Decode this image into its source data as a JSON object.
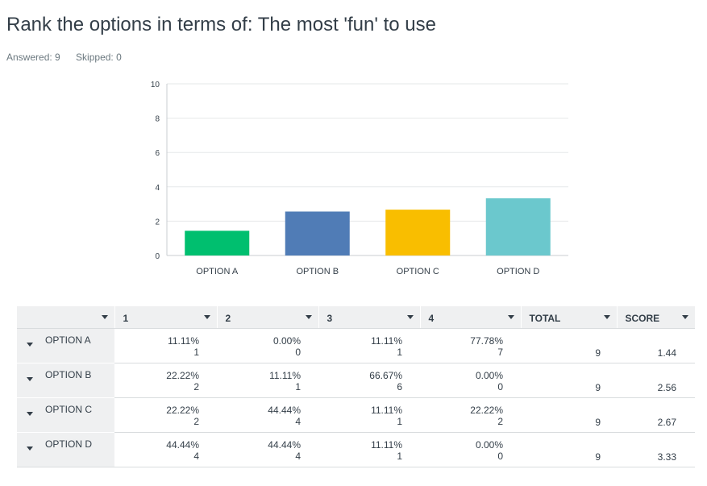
{
  "question": {
    "title": "Rank the options in terms of: The most 'fun' to use",
    "answered": "Answered: 9",
    "skipped": "Skipped: 0"
  },
  "chart_data": {
    "type": "bar",
    "categories": [
      "OPTION A",
      "OPTION B",
      "OPTION C",
      "OPTION D"
    ],
    "values": [
      1.44,
      2.56,
      2.67,
      3.33
    ],
    "colors": [
      "#00bf6f",
      "#507cb6",
      "#f9be00",
      "#6bc8cd"
    ],
    "ylim": [
      0,
      10
    ],
    "yticks": [
      "0",
      "2",
      "4",
      "6",
      "8",
      "10"
    ],
    "grid": true
  },
  "table": {
    "headers": [
      "",
      "1",
      "2",
      "3",
      "4",
      "TOTAL",
      "SCORE"
    ],
    "rows": [
      {
        "label": "OPTION A",
        "cells": [
          [
            "11.11%",
            "1"
          ],
          [
            "0.00%",
            "0"
          ],
          [
            "11.11%",
            "1"
          ],
          [
            "77.78%",
            "7"
          ]
        ],
        "total": "9",
        "score": "1.44"
      },
      {
        "label": "OPTION B",
        "cells": [
          [
            "22.22%",
            "2"
          ],
          [
            "11.11%",
            "1"
          ],
          [
            "66.67%",
            "6"
          ],
          [
            "0.00%",
            "0"
          ]
        ],
        "total": "9",
        "score": "2.56"
      },
      {
        "label": "OPTION C",
        "cells": [
          [
            "22.22%",
            "2"
          ],
          [
            "44.44%",
            "4"
          ],
          [
            "11.11%",
            "1"
          ],
          [
            "22.22%",
            "2"
          ]
        ],
        "total": "9",
        "score": "2.67"
      },
      {
        "label": "OPTION D",
        "cells": [
          [
            "44.44%",
            "4"
          ],
          [
            "44.44%",
            "4"
          ],
          [
            "11.11%",
            "1"
          ],
          [
            "0.00%",
            "0"
          ]
        ],
        "total": "9",
        "score": "3.33"
      }
    ]
  }
}
